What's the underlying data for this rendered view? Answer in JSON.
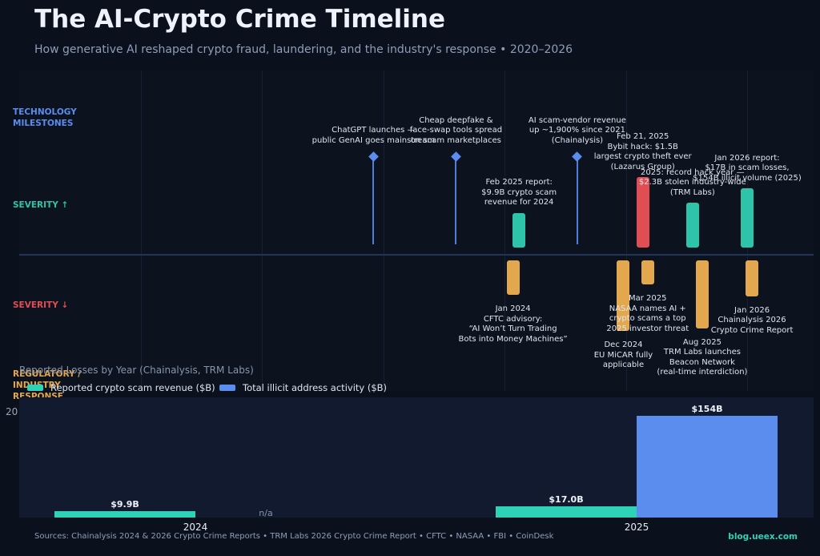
{
  "header": {
    "title": "The AI-Crypto Crime Timeline",
    "subtitle": "How generative AI reshaped crypto fraud, laundering, and the industry's response  •  2020–2026"
  },
  "rows": {
    "tech": "TECHNOLOGY MILESTONES",
    "severity_up": "SEVERITY  ↑",
    "severity_down": "SEVERITY  ↓",
    "regulatory": "REGULATORY / INDUSTRY RESPONSE"
  },
  "colors": {
    "tech": "#5b8def",
    "crime": "#2ec4a9",
    "major": "#e04e54",
    "regulatory": "#e3a84e",
    "scam_revenue": "#2ed3b7",
    "illicit_volume": "#5b8def"
  },
  "chart_data": [
    {
      "type": "timeline",
      "x_start": 2020,
      "x_end": 2026.5,
      "technology": [
        {
          "t": 2022.92,
          "lines": [
            "ChatGPT launches —",
            "public GenAI goes mainstream"
          ]
        },
        {
          "t": 2023.6,
          "lines": [
            "Cheap deepfake &",
            "face-swap tools spread",
            "on scam marketplaces"
          ]
        },
        {
          "t": 2024.6,
          "lines": [
            "AI scam-vendor revenue",
            "up ~1,900% since 2021",
            "(Chainalysis)"
          ]
        }
      ],
      "crime": [
        {
          "t": 2024.12,
          "severity": 0.27,
          "kind": "crime",
          "lines": [
            "Feb 2025 report:",
            "$9.9B crypto scam",
            "revenue for 2024"
          ]
        },
        {
          "t": 2025.14,
          "severity": 0.55,
          "kind": "major",
          "lines": [
            "Feb 21, 2025",
            "Bybit hack: $1.5B",
            "largest crypto theft ever",
            "(Lazarus Group)"
          ]
        },
        {
          "t": 2025.55,
          "severity": 0.35,
          "kind": "crime",
          "lines": [
            "2025: record hack year —",
            "$2.3B stolen industry-wide",
            "(TRM Labs)"
          ]
        },
        {
          "t": 2026.0,
          "severity": 0.46,
          "kind": "crime",
          "lines": [
            "Jan 2026 report:",
            "$17B in scam losses,",
            "$154B illicit volume (2025)"
          ]
        }
      ],
      "regulatory": [
        {
          "t": 2024.07,
          "severity": 0.27,
          "lines": [
            "Jan 2024",
            "CFTC advisory:",
            "“AI Won’t Turn Trading",
            "Bots into Money Machines”"
          ]
        },
        {
          "t": 2024.98,
          "severity": 0.55,
          "lines": [
            "Dec 2024",
            "EU MiCAR fully",
            "applicable"
          ]
        },
        {
          "t": 2025.18,
          "severity": 0.19,
          "lines": [
            "Mar 2025",
            "NASAA names AI +",
            "crypto scams a top",
            "2025 investor threat"
          ]
        },
        {
          "t": 2025.63,
          "severity": 0.53,
          "lines": [
            "Aug 2025",
            "TRM Labs launches",
            "Beacon Network",
            "(real-time interdiction)"
          ]
        },
        {
          "t": 2026.04,
          "severity": 0.28,
          "lines": [
            "Jan 2026",
            "Chainalysis 2026",
            "Crypto Crime Report"
          ]
        }
      ]
    },
    {
      "type": "bar",
      "title": "Reported Losses by Year (Chainalysis, TRM Labs)",
      "categories": [
        "2024",
        "2025"
      ],
      "series": [
        {
          "name": "Reported crypto scam revenue ($B)",
          "values": [
            9.9,
            17.0
          ],
          "labels": [
            "$9.9B",
            "$17.0B"
          ]
        },
        {
          "name": "Total illicit address activity ($B)",
          "values": [
            null,
            154
          ],
          "labels": [
            "n/a",
            "$154B"
          ]
        }
      ],
      "ytick_visible": "20",
      "ylim": [
        0,
        160
      ]
    }
  ],
  "footer": {
    "sources": "Sources: Chainalysis 2024 & 2026 Crypto Crime Reports • TRM Labs 2026 Crypto Crime Report • CFTC • NASAA • FBI • CoinDesk",
    "brand": "blog.ueex.com"
  }
}
